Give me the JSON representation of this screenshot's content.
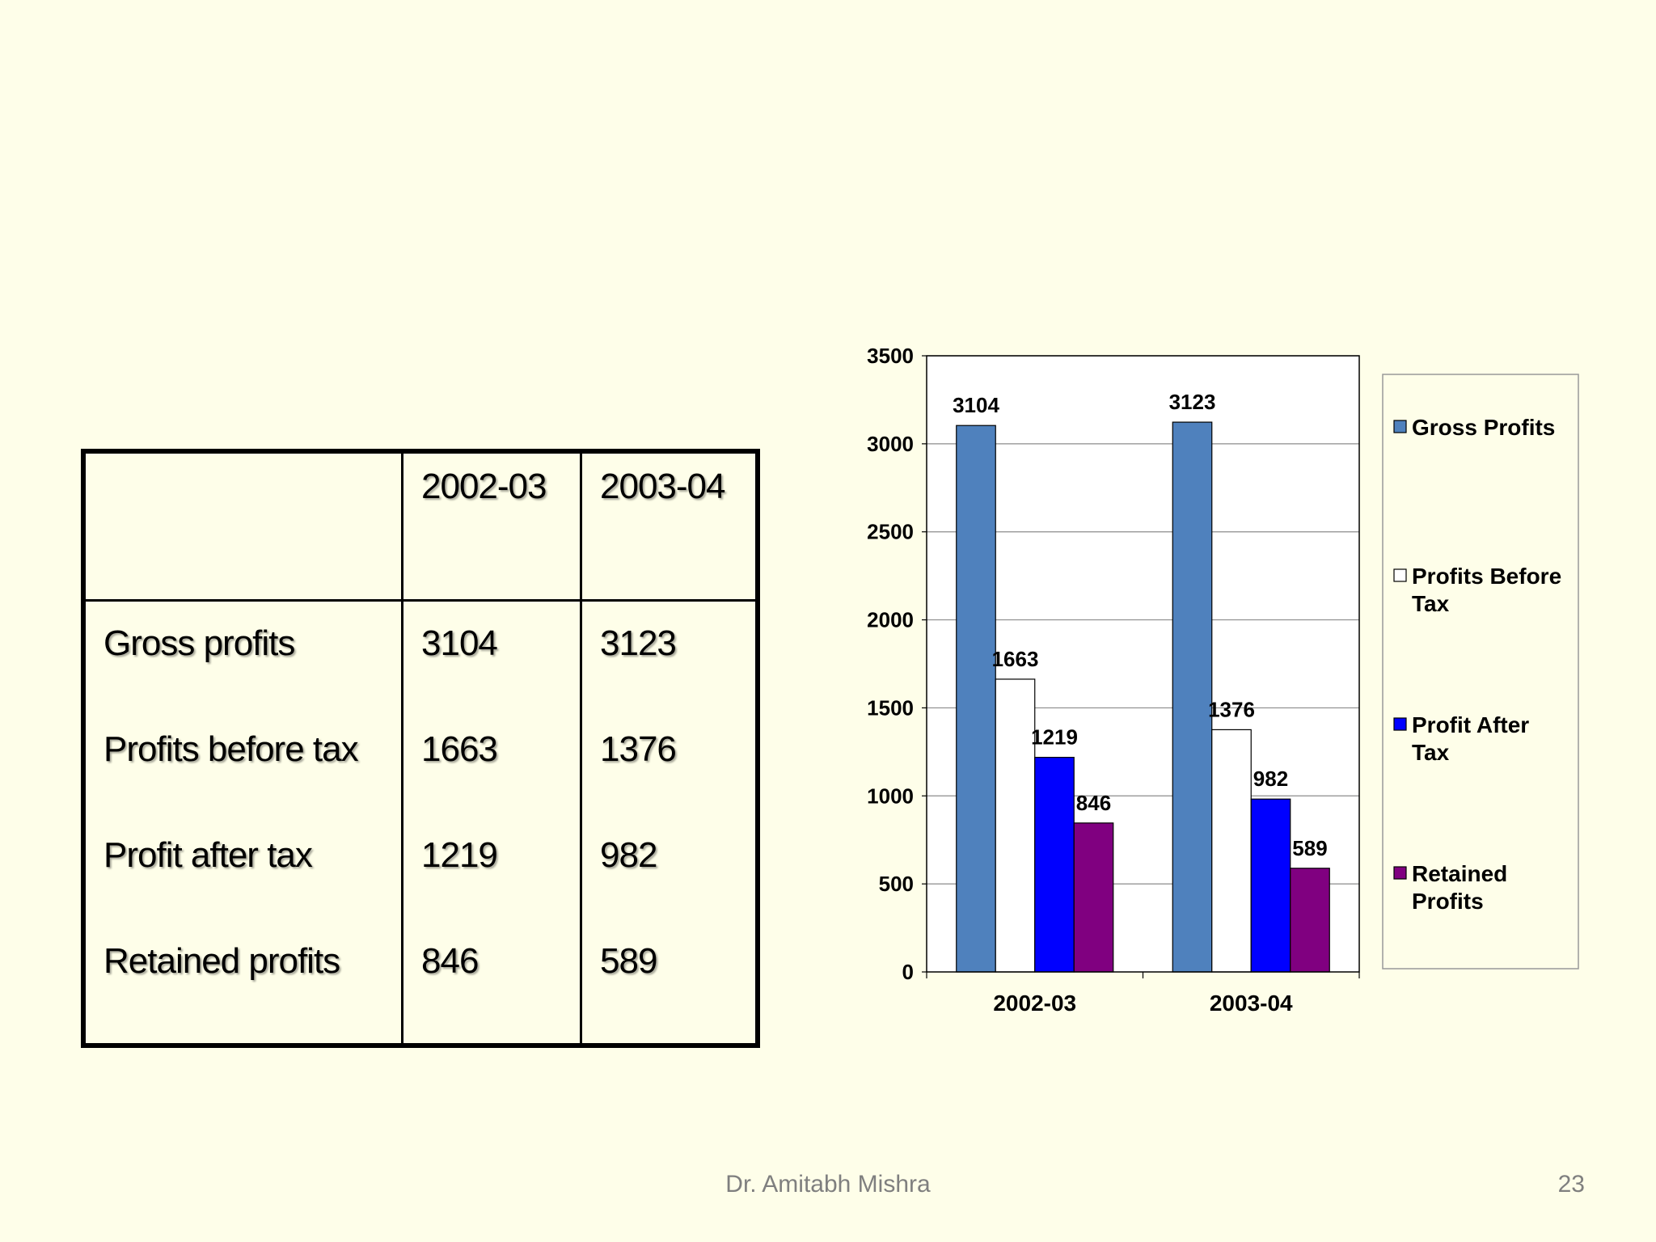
{
  "table": {
    "headers": [
      "",
      "2002-03",
      "2003-04"
    ],
    "rows": [
      {
        "label": "Gross profits",
        "y1": "3104",
        "y2": "3123"
      },
      {
        "label": "Profits before tax",
        "y1": "1663",
        "y2": "1376"
      },
      {
        "label": "Profit after tax",
        "y1": "1219",
        "y2": "982"
      },
      {
        "label": "Retained profits",
        "y1": "846",
        "y2": "589"
      }
    ]
  },
  "chart_data": {
    "type": "bar",
    "categories": [
      "2002-03",
      "2003-04"
    ],
    "series": [
      {
        "name": "Gross Profits",
        "values": [
          3104,
          3123
        ],
        "color": "#4f81bd"
      },
      {
        "name": "Profits Before Tax",
        "values": [
          1663,
          1376
        ],
        "color": "#ffffff"
      },
      {
        "name": "Profit After Tax",
        "values": [
          1219,
          982
        ],
        "color": "#0000ff"
      },
      {
        "name": "Retained Profits",
        "values": [
          846,
          589
        ],
        "color": "#800080"
      }
    ],
    "ylim": [
      0,
      3500
    ],
    "yticks": [
      0,
      500,
      1000,
      1500,
      2000,
      2500,
      3000,
      3500
    ],
    "grid": true,
    "legend": "right",
    "data_labels": true
  },
  "footer": {
    "author": "Dr. Amitabh Mishra",
    "page": "23"
  }
}
